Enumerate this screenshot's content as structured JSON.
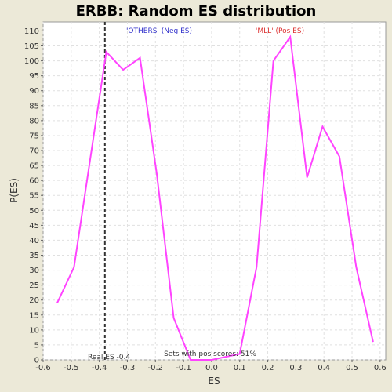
{
  "chart_data": {
    "type": "line",
    "title": "ERBB: Random ES distribution",
    "xlabel": "ES",
    "ylabel": "P(ES)",
    "xlim": [
      -0.6,
      0.62
    ],
    "ylim": [
      0,
      113
    ],
    "x_ticks": [
      "-0.6",
      "-0.5",
      "-0.4",
      "-0.3",
      "-0.2",
      "-0.1",
      "0.0",
      "0.1",
      "0.2",
      "0.3",
      "0.4",
      "0.5",
      "0.6"
    ],
    "y_ticks": [
      "0",
      "5",
      "10",
      "15",
      "20",
      "25",
      "30",
      "35",
      "40",
      "45",
      "50",
      "55",
      "60",
      "65",
      "70",
      "75",
      "80",
      "85",
      "90",
      "95",
      "100",
      "105",
      "110"
    ],
    "grid": true,
    "series": [
      {
        "color": "#ff44ff",
        "x": [
          -0.55,
          -0.49,
          -0.375,
          -0.315,
          -0.255,
          -0.195,
          -0.135,
          -0.075,
          0.0,
          0.1,
          0.16,
          0.22,
          0.28,
          0.34,
          0.395,
          0.455,
          0.515,
          0.575
        ],
        "y": [
          19,
          31,
          103,
          97,
          101,
          62,
          14,
          0,
          0,
          2,
          31,
          100,
          108,
          61,
          78,
          68,
          31,
          6
        ]
      }
    ],
    "real_es": -0.38,
    "annotations": {
      "neg_label": "'OTHERS' (Neg ES)",
      "neg_color": "#3333cc",
      "pos_label": "'MLL' (Pos ES)",
      "pos_color": "#dd3333",
      "real_es_label": "Real ES -0.4",
      "pos_scores_label": "Sets with pos scores: 51%"
    }
  }
}
